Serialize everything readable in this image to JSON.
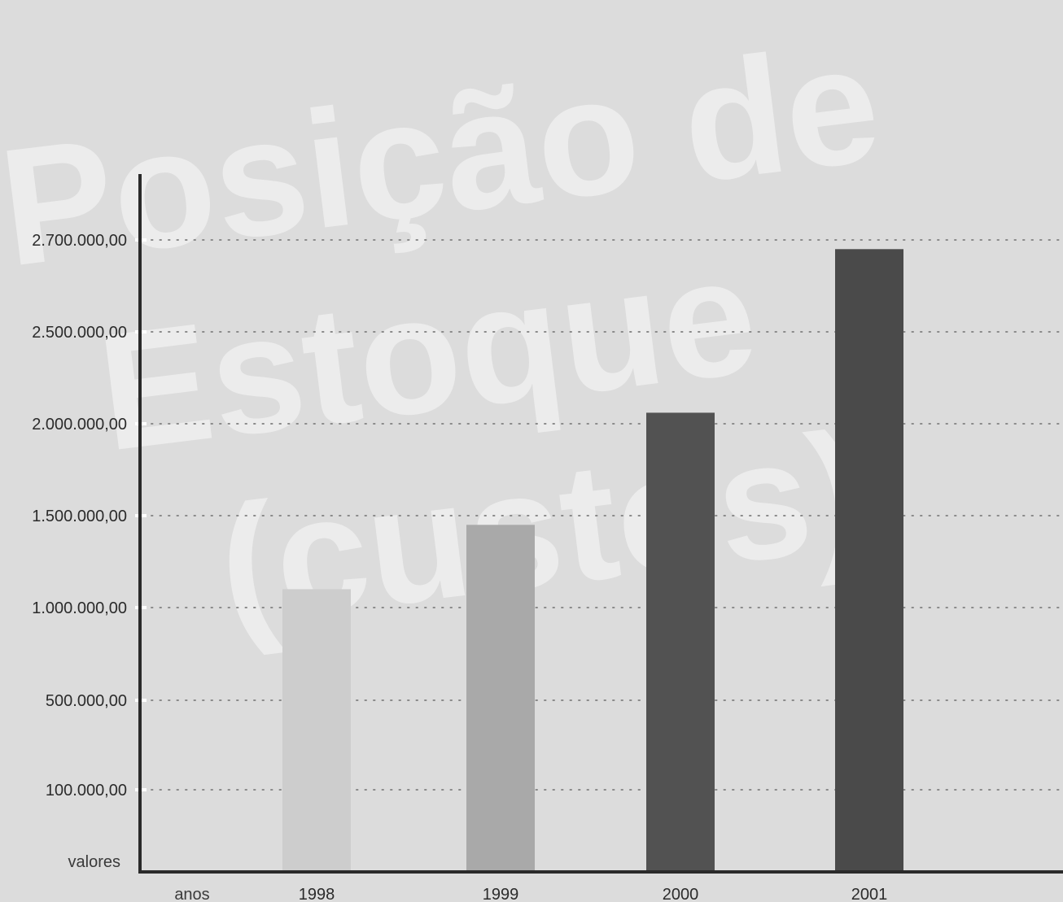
{
  "chart_data": {
    "type": "bar",
    "title": "Posição de Estoque (custos)",
    "xlabel": "anos",
    "ylabel": "valores",
    "categories": [
      "1998",
      "1999",
      "2000",
      "2001"
    ],
    "values": [
      1100000,
      1450000,
      2060000,
      2680000
    ],
    "bar_colors": [
      "#cdcdcd",
      "#a9a9a9",
      "#525252",
      "#4a4a4a"
    ],
    "y_ticks": [
      {
        "label": "100.000,00",
        "rank": 0
      },
      {
        "label": "500.000,00",
        "rank": 1
      },
      {
        "label": "1.000.000,00",
        "rank": 2
      },
      {
        "label": "1.500.000,00",
        "rank": 3
      },
      {
        "label": "2.000.000,00",
        "rank": 4
      },
      {
        "label": "2.500.000,00",
        "rank": 5
      },
      {
        "label": "2.700.000,00",
        "rank": 6
      }
    ],
    "grid": true,
    "legend": "none"
  },
  "colors": {
    "background": "#dcdcdc",
    "axis": "#2a2a2a",
    "grid_dots": "#8a8a8a",
    "watermark": "#ececec"
  }
}
